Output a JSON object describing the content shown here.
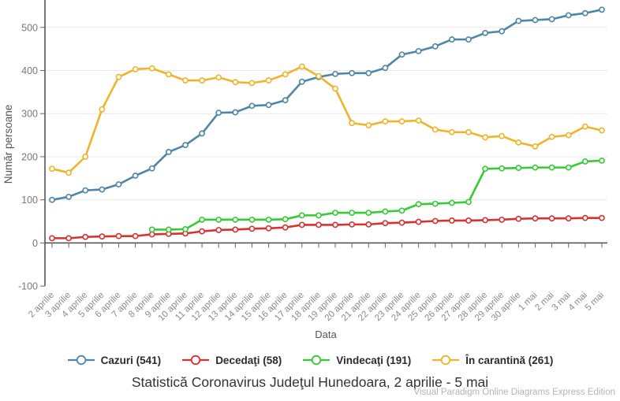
{
  "chart_data": {
    "type": "line",
    "title": "Statistică Coronavirus Judeţul Hunedoara, 2 aprilie - 5 mai",
    "xlabel": "Data",
    "ylabel": "Număr persoane",
    "ylim": [
      -100,
      563
    ],
    "yticks": [
      -100,
      0,
      100,
      200,
      300,
      400,
      500
    ],
    "grid": true,
    "legend_position": "bottom",
    "categories": [
      "2 aprilie",
      "3 aprilie",
      "4 aprilie",
      "5 aprilie",
      "6 aprilie",
      "7 aprilie",
      "8 aprilie",
      "9 aprilie",
      "10 aprilie",
      "11 aprilie",
      "12 aprilie",
      "13 aprilie",
      "14 aprilie",
      "15 aprilie",
      "16 aprilie",
      "17 aprilie",
      "18 aprilie",
      "19 aprilie",
      "20 aprilie",
      "21 aprilie",
      "22 aprilie",
      "23 aprilie",
      "24 aprilie",
      "25 aprilie",
      "26 aprilie",
      "27 aprilie",
      "28 aprilie",
      "29 aprilie",
      "30 aprilie",
      "1 mai",
      "2 mai",
      "3 mai",
      "4 mai",
      "5 mai"
    ],
    "series": [
      {
        "name": "Cazuri (541)",
        "color": "#4d86a9",
        "values": [
          100,
          107,
          122,
          124,
          136,
          156,
          173,
          211,
          227,
          254,
          302,
          303,
          318,
          320,
          331,
          374,
          385,
          392,
          394,
          394,
          406,
          437,
          445,
          456,
          472,
          472,
          487,
          491,
          515,
          517,
          519,
          528,
          533,
          541
        ]
      },
      {
        "name": "Decedaţi (58)",
        "color": "#d93030",
        "values": [
          11,
          11,
          14,
          15,
          16,
          16,
          20,
          21,
          22,
          27,
          30,
          31,
          33,
          34,
          36,
          42,
          42,
          42,
          43,
          43,
          46,
          47,
          49,
          51,
          52,
          52,
          53,
          54,
          56,
          57,
          57,
          57,
          58,
          58
        ]
      },
      {
        "name": "Vindecaţi (191)",
        "color": "#33cc33",
        "values": [
          null,
          null,
          null,
          null,
          null,
          null,
          31,
          31,
          32,
          54,
          54,
          54,
          54,
          54,
          55,
          64,
          64,
          70,
          70,
          70,
          73,
          75,
          90,
          91,
          93,
          95,
          172,
          173,
          174,
          175,
          175,
          175,
          189,
          191
        ]
      },
      {
        "name": "În carantină (261)",
        "color": "#f0b32a",
        "values": [
          172,
          163,
          200,
          310,
          385,
          403,
          405,
          391,
          377,
          377,
          384,
          373,
          371,
          377,
          391,
          409,
          387,
          358,
          278,
          273,
          282,
          282,
          284,
          263,
          257,
          257,
          245,
          248,
          233,
          224,
          246,
          250,
          270,
          261
        ]
      }
    ]
  },
  "watermark": "Visual Paradigm Online Diagrams Express Edition",
  "colors": {
    "gridline": "#e9e9e9",
    "axis": "#4b4b4b",
    "tick": "#666666",
    "y_tick_label": "#777777",
    "x_tick_label": "#8a8a8a",
    "axis_title": "#555555",
    "title_text": "#333333",
    "watermark_text": "#b4b4b4",
    "background": "#ffffff"
  }
}
